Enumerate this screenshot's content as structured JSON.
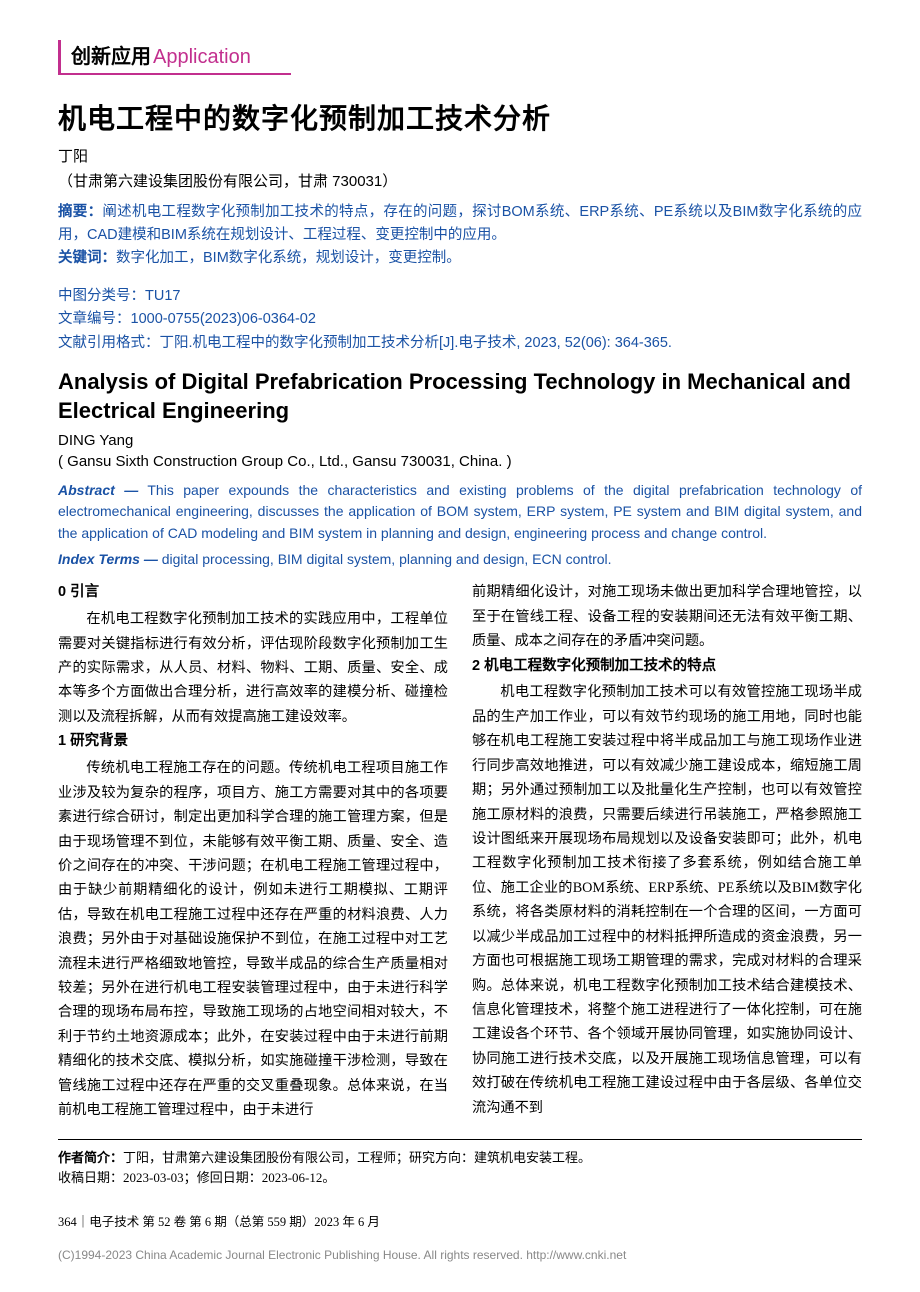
{
  "section": {
    "cn": "创新应用",
    "en": "Application"
  },
  "title_cn": "机电工程中的数字化预制加工技术分析",
  "author_cn": "丁阳",
  "affil_cn": "（甘肃第六建设集团股份有限公司，甘肃 730031）",
  "abstract_cn_label": "摘要：",
  "abstract_cn": "阐述机电工程数字化预制加工技术的特点，存在的问题，探讨BOM系统、ERP系统、PE系统以及BIM数字化系统的应用，CAD建模和BIM系统在规划设计、工程过程、变更控制中的应用。",
  "keywords_cn_label": "关键词：",
  "keywords_cn": "数字化加工，BIM数字化系统，规划设计，变更控制。",
  "clc_label": "中图分类号：",
  "clc": "TU17",
  "artno_label": "文章编号：",
  "artno": "1000-0755(2023)06-0364-02",
  "cite_label": "文献引用格式：",
  "cite": "丁阳.机电工程中的数字化预制加工技术分析[J].电子技术, 2023, 52(06): 364-365.",
  "title_en": "Analysis of Digital Prefabrication Processing Technology in Mechanical and Electrical Engineering",
  "author_en": "DING Yang",
  "affil_en": "( Gansu Sixth Construction Group Co., Ltd., Gansu 730031, China. )",
  "abstract_en_label": "Abstract —",
  "abstract_en": " This paper expounds the characteristics and existing problems of the digital prefabrication technology of electromechanical engineering, discusses the application of BOM system, ERP system, PE system and BIM digital system, and the application of CAD modeling and BIM system in planning and design, engineering process and change control.",
  "index_label": "Index Terms —",
  "index": " digital processing, BIM digital system, planning and design, ECN control.",
  "h0": "0  引言",
  "p0": "在机电工程数字化预制加工技术的实践应用中，工程单位需要对关键指标进行有效分析，评估现阶段数字化预制加工生产的实际需求，从人员、材料、物料、工期、质量、安全、成本等多个方面做出合理分析，进行高效率的建模分析、碰撞检测以及流程拆解，从而有效提高施工建设效率。",
  "h1": "1  研究背景",
  "p1": "传统机电工程施工存在的问题。传统机电工程项目施工作业涉及较为复杂的程序，项目方、施工方需要对其中的各项要素进行综合研讨，制定出更加科学合理的施工管理方案，但是由于现场管理不到位，未能够有效平衡工期、质量、安全、造价之间存在的冲突、干涉问题；在机电工程施工管理过程中，由于缺少前期精细化的设计，例如未进行工期模拟、工期评估，导致在机电工程施工过程中还存在严重的材料浪费、人力浪费；另外由于对基础设施保护不到位，在施工过程中对工艺流程未进行严格细致地管控，导致半成品的综合生产质量相对较差；另外在进行机电工程安装管理过程中，由于未进行科学合理的现场布局布控，导致施工现场的占地空间相对较大，不利于节约土地资源成本；此外，在安装过程中由于未进行前期精细化的技术交底、模拟分析，如实施碰撞干涉检测，导致在管线施工过程中还存在严重的交叉重叠现象。总体来说，在当前机电工程施工管理过程中，由于未进行",
  "p1b": "前期精细化设计，对施工现场未做出更加科学合理地管控，以至于在管线工程、设备工程的安装期间还无法有效平衡工期、质量、成本之间存在的矛盾冲突问题。",
  "h2": "2  机电工程数字化预制加工技术的特点",
  "p2": "机电工程数字化预制加工技术可以有效管控施工现场半成品的生产加工作业，可以有效节约现场的施工用地，同时也能够在机电工程施工安装过程中将半成品加工与施工现场作业进行同步高效地推进，可以有效减少施工建设成本，缩短施工周期；另外通过预制加工以及批量化生产控制，也可以有效管控施工原材料的浪费，只需要后续进行吊装施工，严格参照施工设计图纸来开展现场布局规划以及设备安装即可；此外，机电工程数字化预制加工技术衔接了多套系统，例如结合施工单位、施工企业的BOM系统、ERP系统、PE系统以及BIM数字化系统，将各类原材料的消耗控制在一个合理的区间，一方面可以减少半成品加工过程中的材料抵押所造成的资金浪费，另一方面也可根据施工现场工期管理的需求，完成对材料的合理采购。总体来说，机电工程数字化预制加工技术结合建模技术、信息化管理技术，将整个施工进程进行了一体化控制，可在施工建设各个环节、各个领域开展协同管理，如实施协同设计、协同施工进行技术交底，以及开展施工现场信息管理，可以有效打破在传统机电工程施工建设过程中由于各层级、各单位交流沟通不到",
  "bio_label": "作者简介：",
  "bio": "丁阳，甘肃第六建设集团股份有限公司，工程师；研究方向：建筑机电安装工程。",
  "dates_label1": "收稿日期：",
  "dates1": "2023-03-03；",
  "dates_label2": "修回日期：",
  "dates2": "2023-06-12。",
  "page_footer": "364｜电子技术  第 52 卷 第 6 期（总第 559 期）2023 年 6 月",
  "copyright": "(C)1994-2023 China Academic Journal Electronic Publishing House. All rights reserved.    http://www.cnki.net",
  "colors": {
    "accent": "#c22f8e",
    "abstract": "#1a52a5",
    "text": "#000000",
    "background": "#ffffff",
    "copyright": "#888888"
  }
}
